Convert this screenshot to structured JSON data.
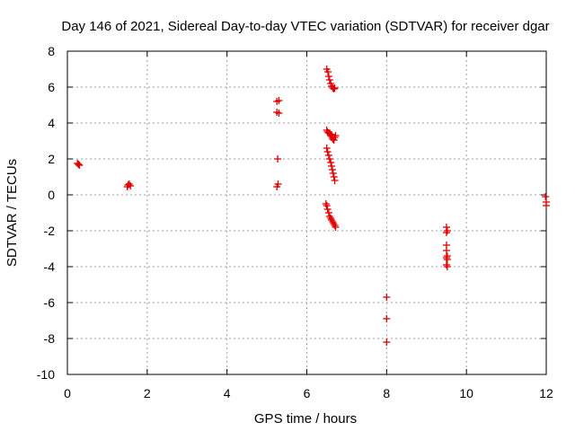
{
  "chart_data": {
    "type": "scatter",
    "title": "Day 146 of 2021, Sidereal Day-to-day VTEC variation (SDTVAR) for receiver dgar",
    "xlabel": "GPS time / hours",
    "ylabel": "SDTVAR / TECUs",
    "xlim": [
      0,
      12
    ],
    "ylim": [
      -10,
      8
    ],
    "xticks": [
      0,
      2,
      4,
      6,
      8,
      10,
      12
    ],
    "yticks": [
      -10,
      -8,
      -6,
      -4,
      -2,
      0,
      2,
      4,
      6,
      8
    ],
    "grid": true,
    "marker": "+",
    "color": "#e00000",
    "series": [
      {
        "name": "SDTVAR",
        "points": [
          [
            0.25,
            1.75
          ],
          [
            0.28,
            1.7
          ],
          [
            0.3,
            1.65
          ],
          [
            1.5,
            0.45
          ],
          [
            1.52,
            0.55
          ],
          [
            1.55,
            0.6
          ],
          [
            1.58,
            0.5
          ],
          [
            5.25,
            5.2
          ],
          [
            5.3,
            5.25
          ],
          [
            5.25,
            4.6
          ],
          [
            5.3,
            4.55
          ],
          [
            5.27,
            2.0
          ],
          [
            5.25,
            0.45
          ],
          [
            5.28,
            0.6
          ],
          [
            6.5,
            7.0
          ],
          [
            6.53,
            6.85
          ],
          [
            6.55,
            6.6
          ],
          [
            6.57,
            6.4
          ],
          [
            6.6,
            6.2
          ],
          [
            6.62,
            6.05
          ],
          [
            6.65,
            5.95
          ],
          [
            6.68,
            5.9
          ],
          [
            6.7,
            5.95
          ],
          [
            6.5,
            3.6
          ],
          [
            6.52,
            3.5
          ],
          [
            6.55,
            3.45
          ],
          [
            6.58,
            3.4
          ],
          [
            6.6,
            3.3
          ],
          [
            6.63,
            3.2
          ],
          [
            6.65,
            3.1
          ],
          [
            6.68,
            3.05
          ],
          [
            6.7,
            3.2
          ],
          [
            6.72,
            3.3
          ],
          [
            6.62,
            3.35
          ],
          [
            6.5,
            2.6
          ],
          [
            6.52,
            2.4
          ],
          [
            6.55,
            2.2
          ],
          [
            6.57,
            2.0
          ],
          [
            6.6,
            1.8
          ],
          [
            6.62,
            1.6
          ],
          [
            6.64,
            1.4
          ],
          [
            6.66,
            1.2
          ],
          [
            6.68,
            1.0
          ],
          [
            6.7,
            0.8
          ],
          [
            6.48,
            -0.5
          ],
          [
            6.5,
            -0.6
          ],
          [
            6.52,
            -0.8
          ],
          [
            6.55,
            -1.0
          ],
          [
            6.57,
            -1.2
          ],
          [
            6.6,
            -1.3
          ],
          [
            6.62,
            -1.4
          ],
          [
            6.65,
            -1.5
          ],
          [
            6.67,
            -1.6
          ],
          [
            6.7,
            -1.7
          ],
          [
            6.72,
            -1.8
          ],
          [
            8.0,
            -5.7
          ],
          [
            8.0,
            -6.9
          ],
          [
            8.0,
            -8.2
          ],
          [
            9.5,
            -1.8
          ],
          [
            9.52,
            -2.0
          ],
          [
            9.5,
            -2.1
          ],
          [
            9.5,
            -2.8
          ],
          [
            9.5,
            -3.1
          ],
          [
            9.52,
            -3.4
          ],
          [
            9.5,
            -3.5
          ],
          [
            9.52,
            -3.6
          ],
          [
            9.5,
            -3.9
          ],
          [
            9.52,
            -4.0
          ],
          [
            11.98,
            -0.1
          ],
          [
            12.0,
            -0.4
          ],
          [
            12.0,
            -0.6
          ]
        ]
      }
    ]
  }
}
